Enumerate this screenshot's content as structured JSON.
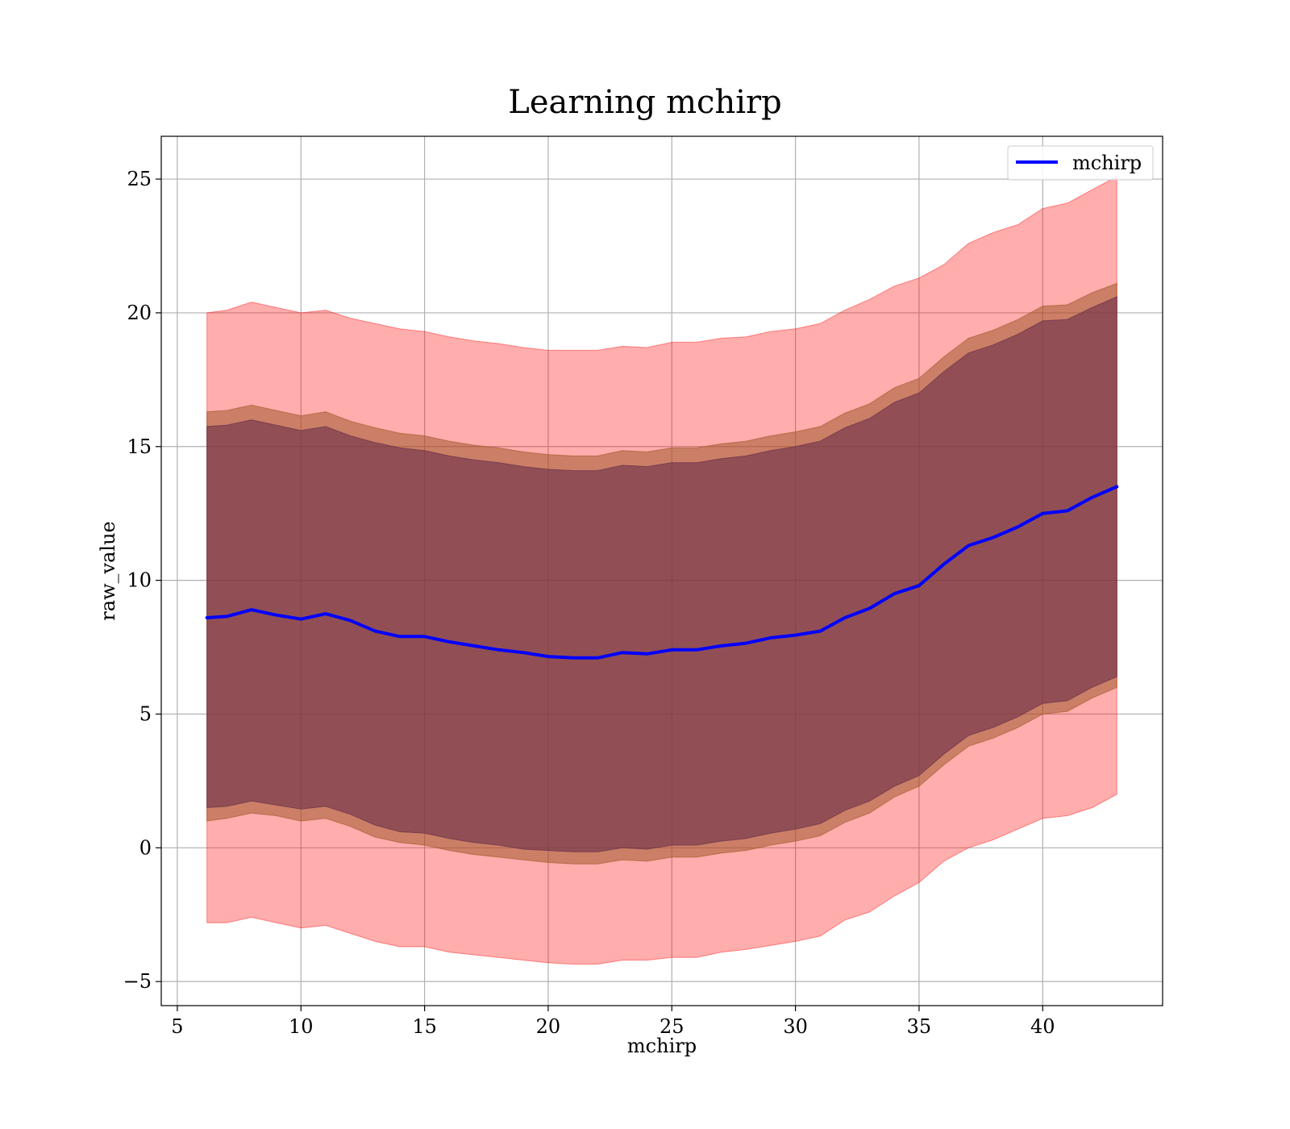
{
  "chart_data": {
    "type": "line",
    "title": "Learning mchirp",
    "xlabel": "mchirp",
    "ylabel": "raw_value",
    "xlim": [
      4.35,
      44.85
    ],
    "ylim": [
      -5.9,
      26.6
    ],
    "xticks": [
      5,
      10,
      15,
      20,
      25,
      30,
      35,
      40
    ],
    "yticks": [
      -5,
      0,
      5,
      10,
      15,
      20,
      25
    ],
    "xtick_labels": [
      "5",
      "10",
      "15",
      "20",
      "25",
      "30",
      "35",
      "40"
    ],
    "ytick_labels": [
      "−5",
      "0",
      "5",
      "10",
      "15",
      "20",
      "25"
    ],
    "grid": true,
    "legend": {
      "position": "top-right",
      "entries": [
        "mchirp"
      ]
    },
    "x": [
      6.2,
      7,
      8,
      9,
      10,
      11,
      12,
      13,
      14,
      15,
      16,
      17,
      18,
      19,
      20,
      21,
      22,
      23,
      24,
      25,
      26,
      27,
      28,
      29,
      30,
      31,
      32,
      33,
      34,
      35,
      36,
      37,
      38,
      39,
      40,
      41,
      42,
      43
    ],
    "series": [
      {
        "name": "mchirp",
        "color": "#0000ff",
        "values": [
          8.6,
          8.65,
          8.9,
          8.7,
          8.55,
          8.75,
          8.5,
          8.1,
          7.9,
          7.9,
          7.7,
          7.55,
          7.4,
          7.3,
          7.15,
          7.1,
          7.1,
          7.3,
          7.25,
          7.4,
          7.4,
          7.55,
          7.65,
          7.85,
          7.95,
          8.1,
          8.6,
          8.95,
          9.5,
          9.8,
          10.6,
          11.3,
          11.6,
          12.0,
          12.5,
          12.6,
          13.1,
          13.5
        ]
      }
    ],
    "bands": [
      {
        "color": "#ff0000",
        "opacity": 0.32,
        "lower": [
          -2.8,
          -2.8,
          -2.6,
          -2.8,
          -3.0,
          -2.9,
          -3.2,
          -3.5,
          -3.7,
          -3.7,
          -3.9,
          -4.0,
          -4.1,
          -4.2,
          -4.3,
          -4.35,
          -4.35,
          -4.2,
          -4.2,
          -4.1,
          -4.1,
          -3.9,
          -3.8,
          -3.65,
          -3.5,
          -3.3,
          -2.7,
          -2.4,
          -1.8,
          -1.3,
          -0.5,
          0.0,
          0.3,
          0.7,
          1.1,
          1.2,
          1.5,
          2.0
        ],
        "upper": [
          20.0,
          20.1,
          20.4,
          20.2,
          20.0,
          20.1,
          19.8,
          19.6,
          19.4,
          19.3,
          19.1,
          18.95,
          18.85,
          18.7,
          18.6,
          18.6,
          18.6,
          18.75,
          18.7,
          18.9,
          18.9,
          19.05,
          19.1,
          19.3,
          19.4,
          19.6,
          20.1,
          20.5,
          21.0,
          21.3,
          21.8,
          22.6,
          23.0,
          23.3,
          23.9,
          24.1,
          24.6,
          25.1
        ]
      },
      {
        "color": "#a05a2c",
        "opacity": 0.55,
        "lower": [
          1.0,
          1.1,
          1.3,
          1.2,
          1.0,
          1.1,
          0.8,
          0.4,
          0.2,
          0.1,
          -0.1,
          -0.25,
          -0.35,
          -0.45,
          -0.55,
          -0.6,
          -0.6,
          -0.45,
          -0.5,
          -0.35,
          -0.35,
          -0.2,
          -0.1,
          0.1,
          0.25,
          0.45,
          0.95,
          1.3,
          1.9,
          2.3,
          3.1,
          3.8,
          4.1,
          4.5,
          5.0,
          5.1,
          5.6,
          6.0
        ],
        "upper": [
          16.3,
          16.35,
          16.55,
          16.35,
          16.15,
          16.3,
          15.95,
          15.7,
          15.5,
          15.4,
          15.2,
          15.05,
          14.95,
          14.8,
          14.7,
          14.65,
          14.65,
          14.85,
          14.8,
          14.95,
          14.95,
          15.1,
          15.2,
          15.4,
          15.55,
          15.75,
          16.25,
          16.6,
          17.2,
          17.55,
          18.35,
          19.05,
          19.35,
          19.75,
          20.25,
          20.3,
          20.75,
          21.1
        ]
      },
      {
        "color": "#6a2f4a",
        "opacity": 0.6,
        "lower": [
          1.5,
          1.55,
          1.75,
          1.6,
          1.45,
          1.55,
          1.25,
          0.85,
          0.6,
          0.55,
          0.35,
          0.2,
          0.1,
          -0.05,
          -0.1,
          -0.15,
          -0.15,
          0.0,
          -0.05,
          0.1,
          0.1,
          0.25,
          0.35,
          0.55,
          0.7,
          0.9,
          1.4,
          1.75,
          2.3,
          2.7,
          3.5,
          4.2,
          4.5,
          4.9,
          5.4,
          5.5,
          6.0,
          6.4
        ],
        "upper": [
          15.75,
          15.8,
          16.0,
          15.8,
          15.6,
          15.75,
          15.4,
          15.15,
          14.95,
          14.85,
          14.65,
          14.5,
          14.4,
          14.25,
          14.15,
          14.1,
          14.1,
          14.3,
          14.25,
          14.4,
          14.4,
          14.55,
          14.65,
          14.85,
          15.0,
          15.2,
          15.7,
          16.05,
          16.65,
          17.0,
          17.8,
          18.5,
          18.8,
          19.2,
          19.7,
          19.75,
          20.2,
          20.6
        ]
      }
    ]
  }
}
